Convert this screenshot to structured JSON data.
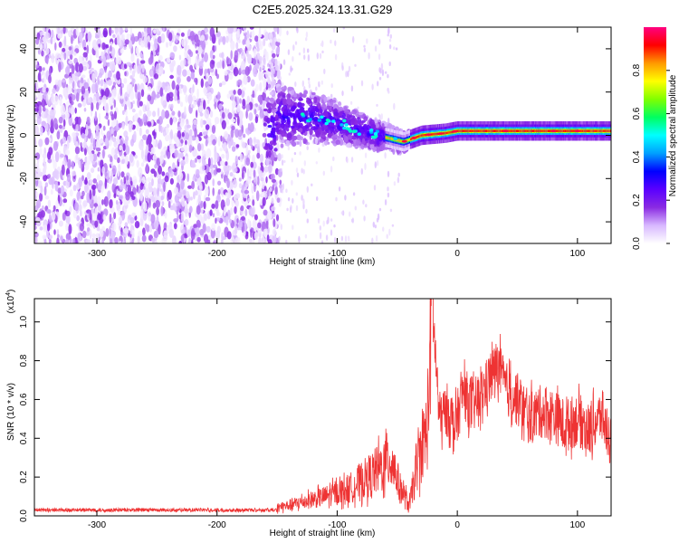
{
  "title": "C2E5.2025.324.13.31.G29",
  "chart_data": [
    {
      "type": "heatmap",
      "name": "spectrogram",
      "xlabel": "Height of straight line (km)",
      "ylabel": "Frequency (Hz)",
      "xlim": [
        -352,
        128
      ],
      "ylim": [
        -50,
        50
      ],
      "xticks": [
        -300,
        -200,
        -100,
        0,
        100
      ],
      "yticks": [
        -40,
        -20,
        0,
        20,
        40
      ],
      "colorbar": {
        "label": "Normalized spectral amplitude",
        "range": [
          0,
          1
        ],
        "ticks": [
          0.0,
          0.2,
          0.4,
          0.6,
          0.8
        ],
        "colormap": [
          "#ffffff",
          "#d8b8ff",
          "#8a2be2",
          "#5a00ff",
          "#0000ff",
          "#00a0ff",
          "#00ffff",
          "#00ff60",
          "#80ff00",
          "#ffff00",
          "#ff9900",
          "#ff0000",
          "#ff0080"
        ]
      },
      "description_points": {
        "noise_region_km": [
          -352,
          -150
        ],
        "transition_km": [
          -150,
          -50
        ],
        "carrier_track": [
          {
            "x": -150,
            "y": 9
          },
          {
            "x": -120,
            "y": 8
          },
          {
            "x": -100,
            "y": 6
          },
          {
            "x": -80,
            "y": 2
          },
          {
            "x": -60,
            "y": -1
          },
          {
            "x": -45,
            "y": -3
          },
          {
            "x": -30,
            "y": 0
          },
          {
            "x": -10,
            "y": 1
          },
          {
            "x": 0,
            "y": 2
          },
          {
            "x": 50,
            "y": 2
          },
          {
            "x": 100,
            "y": 2
          },
          {
            "x": 128,
            "y": 2
          }
        ]
      }
    },
    {
      "type": "line",
      "name": "snr",
      "xlabel": "Height of straight line (km)",
      "ylabel": "SNR (10 * v/v)",
      "yscale_label": "(x10",
      "yscale_exp": "4",
      "yscale_close": ")",
      "xlim": [
        -352,
        128
      ],
      "ylim": [
        0,
        1.12
      ],
      "xticks": [
        -300,
        -200,
        -100,
        0,
        100
      ],
      "yticks": [
        0.0,
        0.2,
        0.4,
        0.6,
        0.8,
        1.0
      ],
      "series_color": "#ee3333",
      "x": [
        -352,
        -300,
        -250,
        -200,
        -170,
        -150,
        -130,
        -110,
        -90,
        -75,
        -65,
        -55,
        -48,
        -40,
        -32,
        -25,
        -21,
        -15,
        -8,
        -2,
        5,
        12,
        20,
        28,
        34,
        40,
        50,
        60,
        70,
        80,
        90,
        100,
        110,
        120,
        128
      ],
      "y": [
        0.02,
        0.02,
        0.025,
        0.02,
        0.025,
        0.04,
        0.07,
        0.1,
        0.14,
        0.2,
        0.24,
        0.3,
        0.15,
        0.05,
        0.3,
        0.45,
        1.12,
        0.5,
        0.55,
        0.45,
        0.65,
        0.55,
        0.62,
        0.72,
        0.78,
        0.66,
        0.6,
        0.5,
        0.54,
        0.52,
        0.46,
        0.5,
        0.44,
        0.52,
        0.38
      ]
    }
  ]
}
